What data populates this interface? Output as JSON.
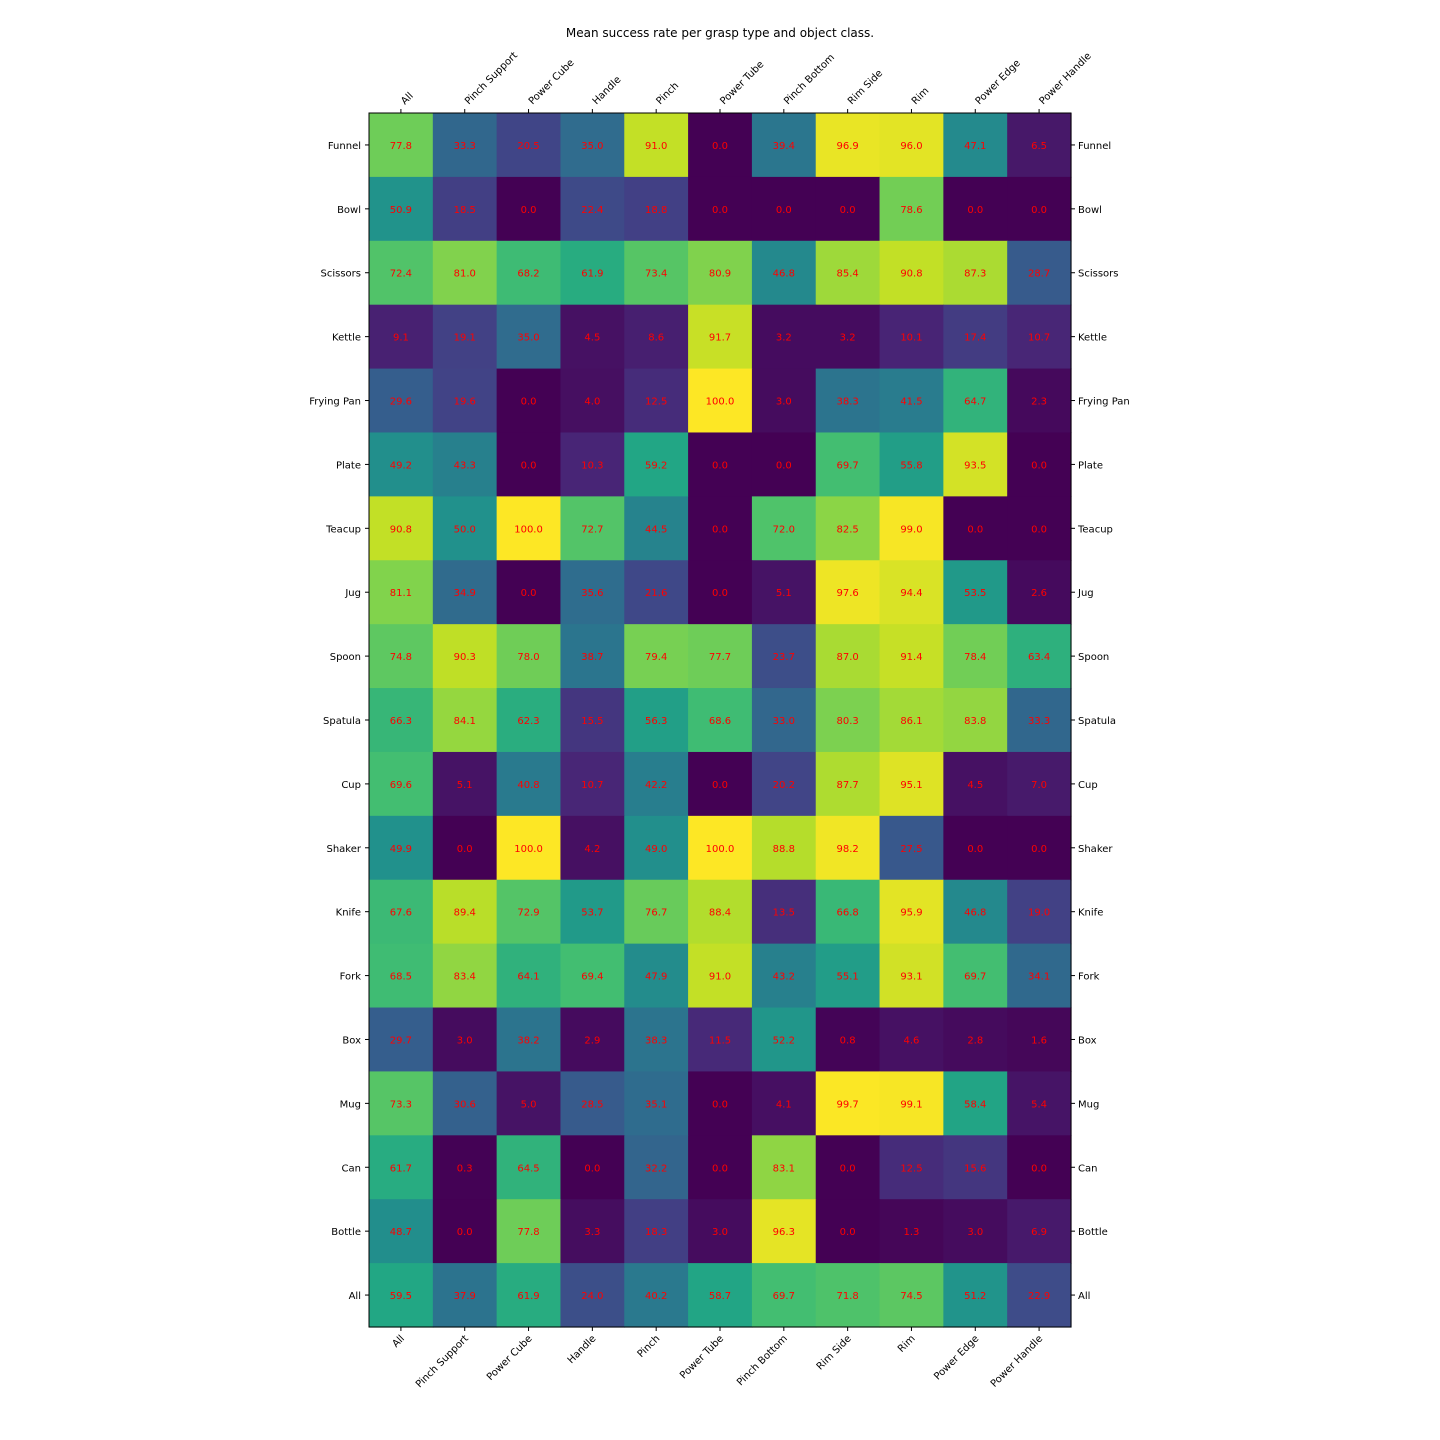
{
  "chart_data": {
    "type": "heatmap",
    "title": "Mean success rate per grasp type and object class.",
    "columns": [
      "All",
      "Pinch Support",
      "Power Cube",
      "Handle",
      "Pinch",
      "Power Tube",
      "Pinch Bottom",
      "Rim Side",
      "Rim",
      "Power Edge",
      "Power Handle"
    ],
    "rows": [
      "Funnel",
      "Bowl",
      "Scissors",
      "Kettle",
      "Frying Pan",
      "Plate",
      "Teacup",
      "Jug",
      "Spoon",
      "Spatula",
      "Cup",
      "Shaker",
      "Knife",
      "Fork",
      "Box",
      "Mug",
      "Can",
      "Bottle",
      "All"
    ],
    "values": [
      [
        77.8,
        33.3,
        20.5,
        35.0,
        91.0,
        0.0,
        39.4,
        96.9,
        96.0,
        47.1,
        6.5
      ],
      [
        50.9,
        18.5,
        0.0,
        22.4,
        18.8,
        0.0,
        0.0,
        0.0,
        78.6,
        0.0,
        0.0
      ],
      [
        72.4,
        81.0,
        68.2,
        61.9,
        73.4,
        80.9,
        46.8,
        85.4,
        90.8,
        87.3,
        28.7
      ],
      [
        9.1,
        19.1,
        35.0,
        4.5,
        8.6,
        91.7,
        3.2,
        3.2,
        10.1,
        17.4,
        10.7
      ],
      [
        29.6,
        19.6,
        0.0,
        4.0,
        12.5,
        100.0,
        3.0,
        38.3,
        41.5,
        64.7,
        2.3
      ],
      [
        49.2,
        43.3,
        0.0,
        10.3,
        59.2,
        0.0,
        0.0,
        69.7,
        55.8,
        93.5,
        0.0
      ],
      [
        90.8,
        50.0,
        100.0,
        72.7,
        44.5,
        0.0,
        72.0,
        82.5,
        99.0,
        0.0,
        0.0
      ],
      [
        81.1,
        34.9,
        0.0,
        35.6,
        21.6,
        0.0,
        5.1,
        97.6,
        94.4,
        53.5,
        2.6
      ],
      [
        74.8,
        90.3,
        78.0,
        38.7,
        79.4,
        77.7,
        23.7,
        87.0,
        91.4,
        78.4,
        63.4
      ],
      [
        66.3,
        84.1,
        62.3,
        15.5,
        56.3,
        68.6,
        33.0,
        80.3,
        86.1,
        83.8,
        33.3
      ],
      [
        69.6,
        5.1,
        40.8,
        10.7,
        42.2,
        0.0,
        20.2,
        87.7,
        95.1,
        4.5,
        7.0
      ],
      [
        49.9,
        0.0,
        100.0,
        4.2,
        49.0,
        100.0,
        88.8,
        98.2,
        27.5,
        0.0,
        0.0
      ],
      [
        67.6,
        89.4,
        72.9,
        53.7,
        76.7,
        88.4,
        13.5,
        66.8,
        95.9,
        46.8,
        19.0
      ],
      [
        68.5,
        83.4,
        64.1,
        69.4,
        47.9,
        91.0,
        43.2,
        55.1,
        93.1,
        69.7,
        34.1
      ],
      [
        29.7,
        3.0,
        38.2,
        2.9,
        38.3,
        11.5,
        52.2,
        0.8,
        4.6,
        2.8,
        1.6
      ],
      [
        73.3,
        30.6,
        5.0,
        28.5,
        35.1,
        0.0,
        4.1,
        99.7,
        99.1,
        58.4,
        5.4
      ],
      [
        61.7,
        0.3,
        64.5,
        0.0,
        32.2,
        0.0,
        83.1,
        0.0,
        12.5,
        15.6,
        0.0
      ],
      [
        48.7,
        0.0,
        77.8,
        3.3,
        18.3,
        3.0,
        96.3,
        0.0,
        1.3,
        3.0,
        6.9
      ],
      [
        59.5,
        37.9,
        61.9,
        24.0,
        40.2,
        58.7,
        69.7,
        71.8,
        74.5,
        51.2,
        22.9
      ]
    ],
    "value_range": [
      0,
      100
    ],
    "colormap": "viridis",
    "annotation_color": "#ff0000",
    "legend": "none",
    "grid": false
  }
}
